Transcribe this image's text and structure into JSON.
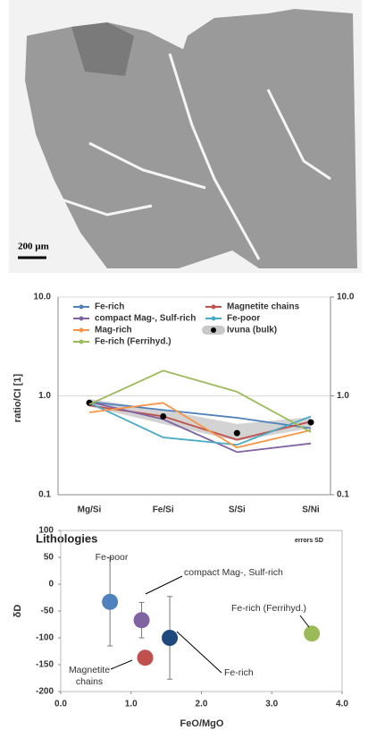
{
  "image": {
    "scale_label": "200 µm"
  },
  "chart_data": [
    {
      "type": "line",
      "ylabel": "ratio/CI [1]",
      "log_y": true,
      "grid": true,
      "categories": [
        "Mg/Si",
        "Fe/Si",
        "S/Si",
        "S/Ni"
      ],
      "ylim": [
        0.1,
        10
      ],
      "yticks": [
        0.1,
        {
          "value": 1,
          "label": "1.0"
        },
        {
          "value": 10,
          "label": "10.0"
        }
      ],
      "y2lim": [
        0.1,
        10
      ],
      "y2ticks": [
        0.1,
        {
          "value": 1,
          "label": "1.0"
        },
        {
          "value": 10,
          "label": "10.0"
        }
      ],
      "series": [
        {
          "name": "Fe-rich",
          "color": "#4f81bd",
          "values": [
            0.87,
            0.72,
            0.6,
            0.47
          ]
        },
        {
          "name": "Magnetite chains",
          "color": "#c0504d",
          "values": [
            0.8,
            0.62,
            0.36,
            0.55
          ]
        },
        {
          "name": "compact Mag-, Sulf-rich",
          "color": "#8064a2",
          "values": [
            0.87,
            0.58,
            0.27,
            0.33
          ]
        },
        {
          "name": "Fe-poor",
          "color": "#4bacc6",
          "values": [
            0.85,
            0.38,
            0.32,
            0.62
          ]
        },
        {
          "name": "Mag-rich",
          "color": "#f79646",
          "values": [
            0.68,
            0.85,
            0.3,
            0.45
          ]
        },
        {
          "name": "Ivuna (bulk)",
          "color": "#000000",
          "marker": "dot",
          "values": [
            0.85,
            0.62,
            0.42,
            0.54
          ],
          "lower": [
            0.78,
            0.52,
            0.35,
            0.47
          ],
          "upper": [
            0.93,
            0.72,
            0.52,
            0.61
          ]
        },
        {
          "name": "Fe-rich (Ferrihyd.)",
          "color": "#9bbb59",
          "values": [
            0.82,
            1.8,
            1.1,
            0.43
          ]
        }
      ]
    },
    {
      "type": "scatter",
      "title": "Lithologies",
      "note": "errors SD",
      "xlabel": "FeO/MgO",
      "ylabel": "δD",
      "xlim": [
        0,
        4
      ],
      "xticks": [
        {
          "value": 0,
          "label": "0.0"
        },
        {
          "value": 1,
          "label": "1.0"
        },
        {
          "value": 2,
          "label": "2.0"
        },
        {
          "value": 3,
          "label": "3.0"
        },
        {
          "value": 4,
          "label": "4.0"
        }
      ],
      "ylim": [
        -200,
        100
      ],
      "yticks": [
        -200,
        -150,
        -100,
        -50,
        0,
        50,
        100
      ],
      "series": [
        {
          "name": "Fe-poor",
          "color": "#4f81bd",
          "x": [
            0.7
          ],
          "values": [
            -33
          ],
          "errors": [
            82
          ]
        },
        {
          "name": "compact Mag-, Sulf-rich",
          "color": "#8064a2",
          "x": [
            1.15
          ],
          "values": [
            -67
          ],
          "errors": [
            33
          ]
        },
        {
          "name": "Magnetite chains",
          "color": "#c0504d",
          "x": [
            1.2
          ],
          "values": [
            -137
          ],
          "errors": [
            null
          ]
        },
        {
          "name": "Fe-rich",
          "color": "#1f497d",
          "x": [
            1.55
          ],
          "values": [
            -100
          ],
          "errors": [
            77
          ]
        },
        {
          "name": "Fe-rich (Ferrihyd.)",
          "color": "#9bbb59",
          "x": [
            3.57
          ],
          "values": [
            -92
          ],
          "errors": [
            null
          ]
        }
      ]
    }
  ]
}
